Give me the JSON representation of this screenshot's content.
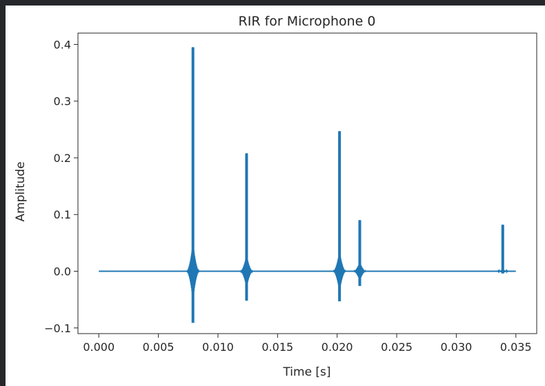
{
  "chart_data": {
    "type": "line",
    "title": "RIR for Microphone 0",
    "xlabel": "Time [s]",
    "ylabel": "Amplitude",
    "xlim": [
      -0.00175,
      0.03675
    ],
    "ylim": [
      -0.11,
      0.42
    ],
    "x_ticks": [
      "0.000",
      "0.005",
      "0.010",
      "0.015",
      "0.020",
      "0.025",
      "0.030",
      "0.035"
    ],
    "x_tick_values": [
      0,
      0.005,
      0.01,
      0.015,
      0.02,
      0.025,
      0.03,
      0.035
    ],
    "y_ticks": [
      "−0.1",
      "0.0",
      "0.1",
      "0.2",
      "0.3",
      "0.4"
    ],
    "y_tick_values": [
      -0.1,
      0,
      0.1,
      0.2,
      0.3,
      0.4
    ],
    "grid": false,
    "line_color": "#1f77b4",
    "signal_range": [
      0,
      0.035
    ],
    "series": [
      {
        "peaks": [
          {
            "t": 0.0079,
            "max": 0.394,
            "min": -0.091,
            "ringing": 0.05
          },
          {
            "t": 0.0124,
            "max": 0.207,
            "min": -0.052,
            "ringing": 0.028
          },
          {
            "t": 0.0202,
            "max": 0.246,
            "min": -0.053,
            "ringing": 0.035
          },
          {
            "t": 0.0219,
            "max": 0.089,
            "min": -0.026,
            "ringing": 0.016
          },
          {
            "t": 0.0339,
            "max": 0.081,
            "min": -0.004,
            "ringing": 0.003
          }
        ]
      }
    ]
  }
}
